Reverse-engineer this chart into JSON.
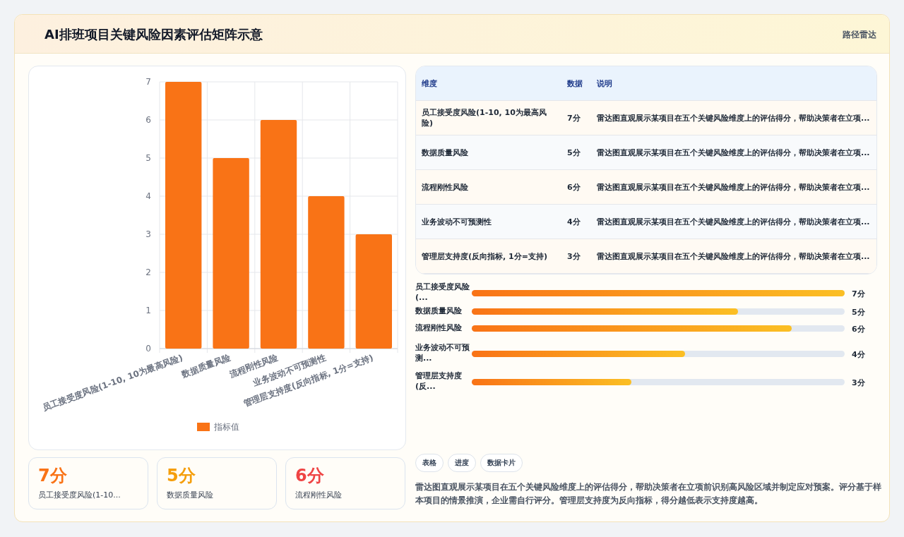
{
  "chart_data": [
    {
      "type": "other",
      "title": "AI排班项目关键风险因素评估矩阵示意",
      "subtitle": "路径雷达"
    },
    {
      "type": "bar",
      "categories": [
        "员工接受度风险(1-10, 10为最高风险)",
        "数据质量风险",
        "流程刚性风险",
        "业务波动不可预测性",
        "管理层支持度(反向指标, 1分=支持)"
      ],
      "series": [
        {
          "name": "指标值",
          "color": "#f97316",
          "values": [
            7,
            5,
            6,
            4,
            3
          ]
        }
      ],
      "ylim": [
        0,
        7
      ],
      "yticks": [
        0,
        1,
        2,
        3,
        4,
        5,
        6,
        7
      ],
      "grid": true,
      "legend": "bottom"
    },
    {
      "type": "other",
      "annotations": [
        "维度",
        "数据",
        "说明"
      ],
      "categories": [
        "员工接受度风险(1-10, 10为最高风险)",
        "数据质量风险",
        "流程刚性风险",
        "业务波动不可预测性",
        "管理层支持度(反向指标, 1分=支持)"
      ],
      "cell_labels": [
        [
          "7分",
          "雷达图直观展示某项目在五个关键风险维度上的评估得分，帮助决策者在立项..."
        ],
        [
          "5分",
          "雷达图直观展示某项目在五个关键风险维度上的评估得分，帮助决策者在立项..."
        ],
        [
          "6分",
          "雷达图直观展示某项目在五个关键风险维度上的评估得分，帮助决策者在立项..."
        ],
        [
          "4分",
          "雷达图直观展示某项目在五个关键风险维度上的评估得分，帮助决策者在立项..."
        ],
        [
          "3分",
          "雷达图直观展示某项目在五个关键风险维度上的评估得分，帮助决策者在立项..."
        ]
      ]
    },
    {
      "type": "bar",
      "orientation": "horizontal",
      "categories": [
        "员工接受度风险(...",
        "数据质量风险",
        "流程刚性风险",
        "业务波动不可预测...",
        "管理层支持度(反..."
      ],
      "values": [
        7,
        5,
        6,
        4,
        3
      ],
      "value_labels": [
        "7分",
        "5分",
        "6分",
        "4分",
        "3分"
      ],
      "color": "#f97316"
    },
    {
      "type": "other",
      "categories": [
        "员工接受度风险(1-10...",
        "数据质量风险",
        "流程刚性风险"
      ],
      "annotations": [
        "7分",
        "5分",
        "6分"
      ],
      "colors": [
        "#f97316",
        "#f59e0b",
        "#ef4444"
      ]
    },
    {
      "type": "other",
      "categories": [
        "表格",
        "进度",
        "数据卡片"
      ],
      "annotations": [
        "雷达图直观展示某项目在五个关键风险维度上的评估得分，帮助决策者在立项前识别高风险区域并制定应对预案。评分基于样本项目的情景推演，企业需自行评分。管理层支持度为反向指标，得分越低表示支持度越高。"
      ]
    }
  ]
}
